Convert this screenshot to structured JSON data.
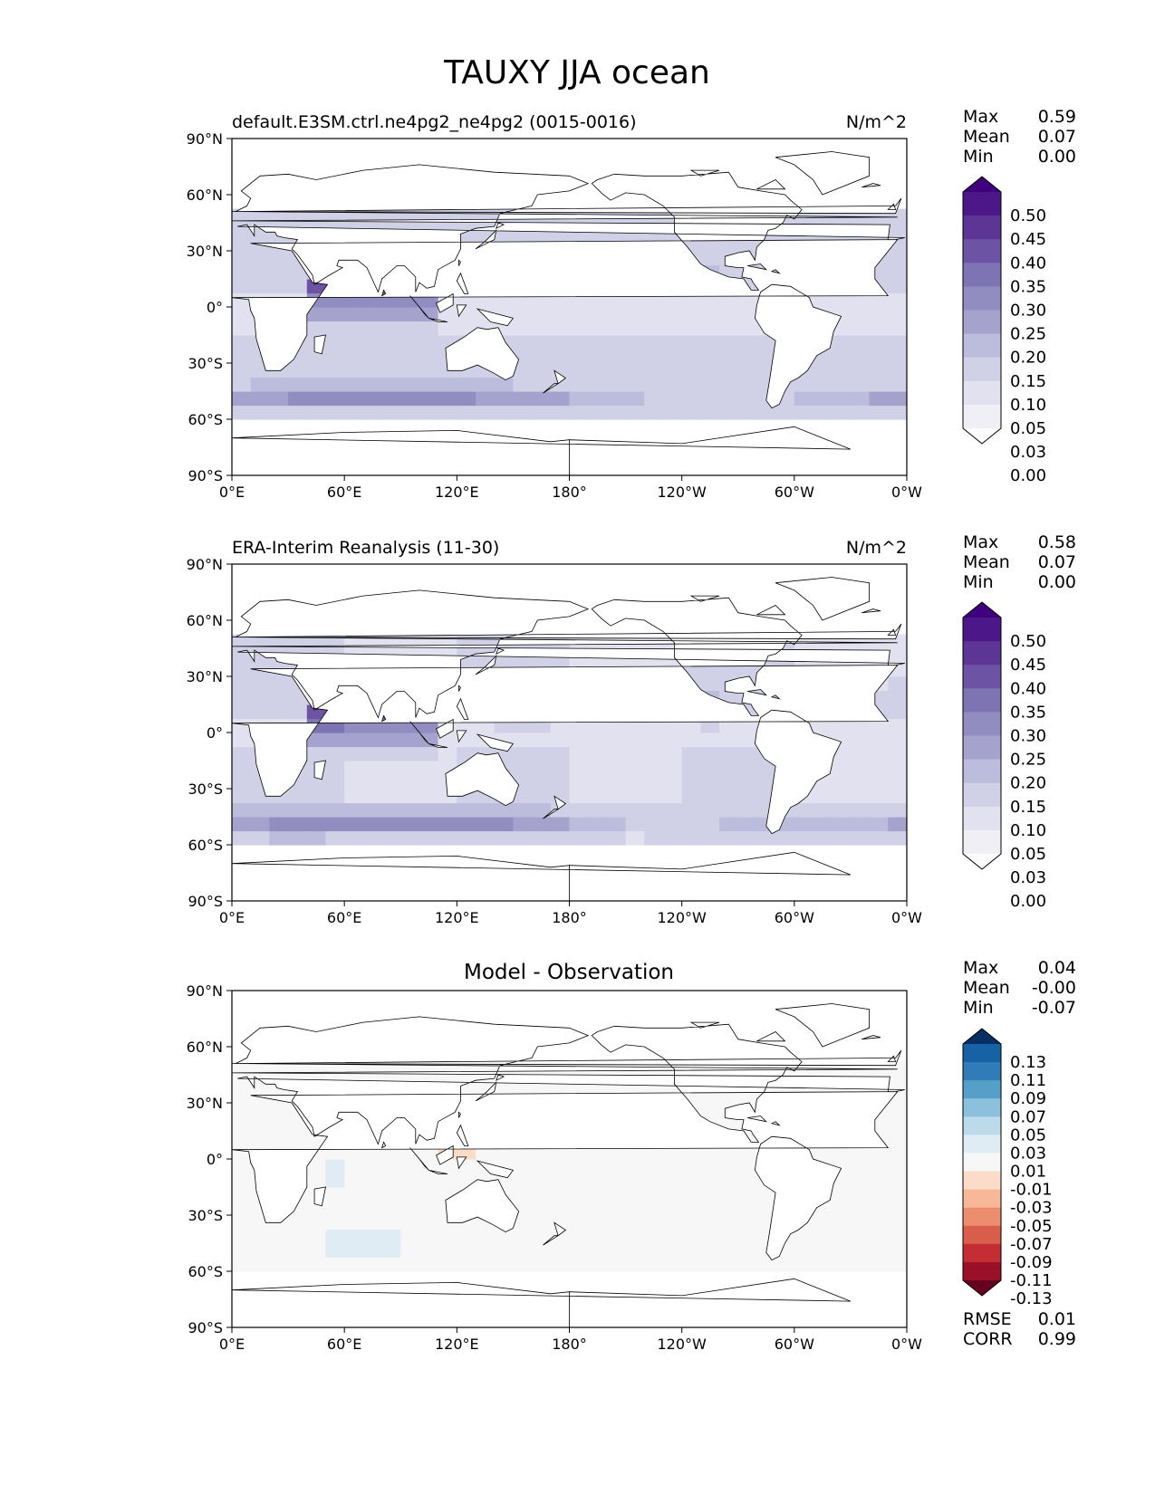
{
  "figure": {
    "title": "TAUXY JJA ocean"
  },
  "lat_ticks": [
    "90°N",
    "60°N",
    "30°N",
    "0°",
    "30°S",
    "60°S",
    "90°S"
  ],
  "lon_ticks": [
    "0°E",
    "60°E",
    "120°E",
    "180°",
    "120°W",
    "60°W",
    "0°W"
  ],
  "stat_labels": {
    "max": "Max",
    "mean": "Mean",
    "min": "Min",
    "rmse": "RMSE",
    "corr": "CORR"
  },
  "colors": {
    "land": "#ffffff",
    "coast": "#000000",
    "purples": [
      "#fcfbfd",
      "#f0eff6",
      "#e2e1ef",
      "#d0d1e7",
      "#bcbddc",
      "#a5a2cd",
      "#918dc1",
      "#7e74b3",
      "#6c53a4",
      "#5c3595",
      "#4b1789",
      "#3f007d"
    ],
    "rdbu": [
      "#67001f",
      "#9a1029",
      "#c42d34",
      "#d85d4a",
      "#ec8e6e",
      "#f7b899",
      "#fbdcc9",
      "#f7f7f7",
      "#dfecf4",
      "#bcdaea",
      "#8cc1dd",
      "#569fc9",
      "#2f7cb8",
      "#1761a5",
      "#053061"
    ]
  },
  "chart_data": [
    {
      "type": "heatmap",
      "name": "test",
      "title": "default.E3SM.ctrl.ne4pg2_ne4pg2 (0015-0016)",
      "units": "N/m^2",
      "xlim": [
        0,
        360
      ],
      "ylim": [
        -90,
        90
      ],
      "stats": {
        "max": "0.59",
        "mean": "0.07",
        "min": "0.00"
      },
      "colorbar": {
        "levels": [
          "0.50",
          "0.45",
          "0.40",
          "0.35",
          "0.30",
          "0.25",
          "0.20",
          "0.15",
          "0.10",
          "0.05",
          "0.03",
          "0.00"
        ],
        "extend": "both"
      }
    },
    {
      "type": "heatmap",
      "name": "reference",
      "title": "ERA-Interim Reanalysis (11-30)",
      "units": "N/m^2",
      "xlim": [
        0,
        360
      ],
      "ylim": [
        -90,
        90
      ],
      "stats": {
        "max": "0.58",
        "mean": "0.07",
        "min": "0.00"
      },
      "colorbar": {
        "levels": [
          "0.50",
          "0.45",
          "0.40",
          "0.35",
          "0.30",
          "0.25",
          "0.20",
          "0.15",
          "0.10",
          "0.05",
          "0.03",
          "0.00"
        ],
        "extend": "both"
      }
    },
    {
      "type": "heatmap",
      "name": "difference",
      "title": "Model - Observation",
      "units": "",
      "xlim": [
        0,
        360
      ],
      "ylim": [
        -90,
        90
      ],
      "stats": {
        "max": "0.04",
        "mean": "-0.00",
        "min": "-0.07",
        "rmse": "0.01",
        "corr": "0.99"
      },
      "colorbar": {
        "levels": [
          "0.13",
          "0.11",
          "0.09",
          "0.07",
          "0.05",
          "0.03",
          "0.01",
          "-0.01",
          "-0.03",
          "-0.05",
          "-0.07",
          "-0.09",
          "-0.11",
          "-0.13"
        ],
        "extend": "both"
      }
    }
  ]
}
